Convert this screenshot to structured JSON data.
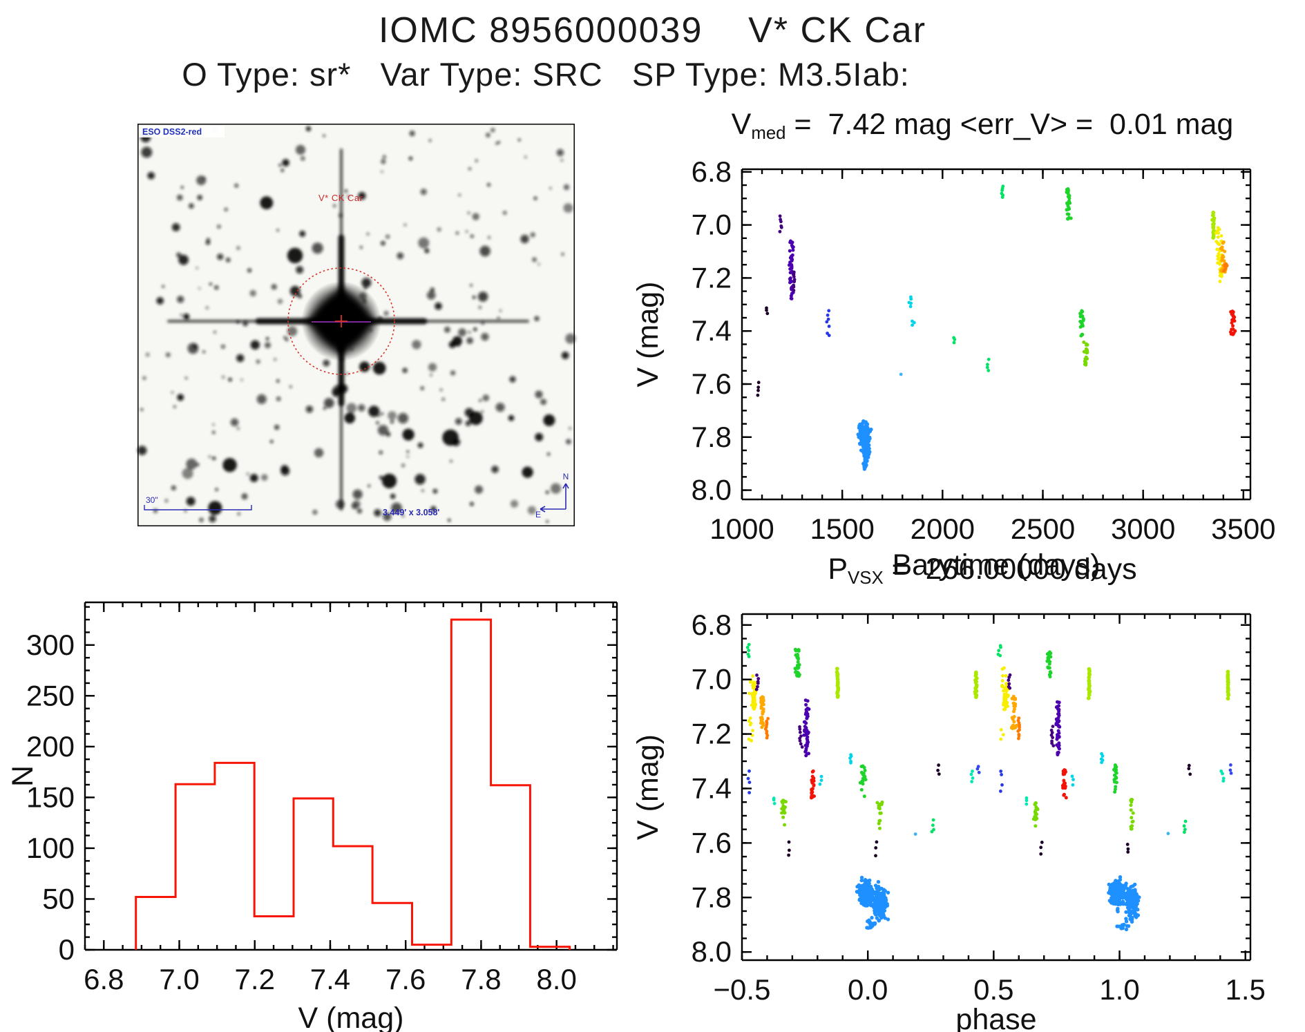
{
  "page": {
    "title": "IOMC 8956000039    V* CK Car",
    "subtitle": "O Type: sr*   Var Type: SRC   SP Type: M3.5Iab:"
  },
  "colors": {
    "axis": "#000000",
    "histred": "#f81505",
    "nearblack": "#1b0125",
    "darkviolet": "#43007f",
    "indigo": "#4b00b0",
    "blue": "#2737e8",
    "blue2": "#3349f0",
    "dodger": "#1e90ff",
    "skyblue": "#3fb3f7",
    "cyan": "#00d4e8",
    "turquoise": "#00e8b0",
    "springgreen": "#00e263",
    "green": "#1ed42a",
    "lime": "#78d900",
    "chartreuse": "#abe800",
    "yellow": "#f8ef00",
    "orange": "#ffa800",
    "orange2": "#ff7a00",
    "red": "#f31307",
    "finder_blue": "#2a2ab5",
    "finder_red": "#d93025",
    "finder_magenta": "#a735c9"
  },
  "finder": {
    "survey_label": "ESO DSS2-red",
    "target_label": "V* CK Car",
    "scale_label": "30\"",
    "fov_label": "3.449' x 3.058'",
    "compass_n": "N",
    "compass_e": "E"
  },
  "chart_data": [
    {
      "id": "lightcurve",
      "type": "scatter",
      "title_pre": "V",
      "title_sub": "med",
      "title_post": " =  7.42 mag <err_V> =  0.01 mag",
      "xlabel": "Barytime (days)",
      "ylabel": "V (mag)",
      "xlim": [
        1000,
        3535
      ],
      "ylim": [
        6.79,
        8.035
      ],
      "xtick_vals": [
        1000,
        1500,
        2000,
        2500,
        3000,
        3500
      ],
      "xtick_labels": [
        "1000",
        "1500",
        "2000",
        "2500",
        "3000",
        "3500"
      ],
      "ytick_vals": [
        6.8,
        7.0,
        7.2,
        7.4,
        7.6,
        7.8,
        8.0
      ],
      "ytick_labels": [
        "6.8",
        "7.0",
        "7.2",
        "7.4",
        "7.6",
        "7.8",
        "8.0"
      ],
      "xminor": 100,
      "yminor": 0.05,
      "clusters": [
        [
          1080,
          7.59,
          7.65,
          4,
          "nearblack",
          "dots"
        ],
        [
          1125,
          7.31,
          7.34,
          3,
          "nearblack",
          "dots"
        ],
        [
          1195,
          6.96,
          7.03,
          6,
          "darkviolet",
          "dots"
        ],
        [
          1247,
          7.05,
          7.28,
          45,
          "indigo",
          "col"
        ],
        [
          1256,
          7.17,
          7.25,
          8,
          "darkviolet",
          "dots"
        ],
        [
          1430,
          7.31,
          7.43,
          7,
          "blue",
          "dots"
        ],
        [
          1795,
          7.56,
          7.57,
          1,
          "skyblue",
          "dots"
        ],
        [
          1840,
          7.27,
          7.31,
          5,
          "cyan",
          "dots"
        ],
        [
          1852,
          7.36,
          7.38,
          3,
          "cyan",
          "dots"
        ],
        [
          2058,
          7.42,
          7.45,
          3,
          "springgreen",
          "dots"
        ],
        [
          2227,
          7.5,
          7.56,
          4,
          "springgreen",
          "dots"
        ],
        [
          2299,
          6.85,
          6.9,
          6,
          "springgreen",
          "dots"
        ],
        [
          2625,
          6.86,
          6.98,
          28,
          "green",
          "col"
        ],
        [
          2694,
          7.3,
          7.42,
          20,
          "green",
          "col"
        ],
        [
          2716,
          7.43,
          7.53,
          18,
          "lime",
          "col"
        ],
        [
          3350,
          6.95,
          7.05,
          15,
          "chartreuse",
          "bar"
        ],
        [
          3378,
          6.99,
          7.22,
          35,
          "yellow",
          "scatter"
        ],
        [
          3400,
          7.06,
          7.18,
          25,
          "orange",
          "col"
        ],
        [
          3412,
          7.14,
          7.18,
          8,
          "orange2",
          "col"
        ],
        [
          3447,
          7.32,
          7.42,
          22,
          "red",
          "col"
        ]
      ],
      "blob": {
        "color": "dodger",
        "lobes": [
          [
            1610,
            22,
            7.79,
            0.045,
            170
          ],
          [
            1617,
            15,
            7.84,
            0.04,
            120
          ],
          [
            1612,
            8,
            7.905,
            0.015,
            12
          ]
        ]
      }
    },
    {
      "id": "histogram",
      "type": "bar",
      "xlabel": "V (mag)",
      "ylabel": "N",
      "xlim": [
        6.75,
        8.16
      ],
      "ylim": [
        0,
        342
      ],
      "xtick_vals": [
        6.8,
        7.0,
        7.2,
        7.4,
        7.6,
        7.8,
        8.0
      ],
      "xtick_labels": [
        "6.8",
        "7.0",
        "7.2",
        "7.4",
        "7.6",
        "7.8",
        "8.0"
      ],
      "ytick_vals": [
        0,
        50,
        100,
        150,
        200,
        250,
        300
      ],
      "ytick_labels": [
        "0",
        "50",
        "100",
        "150",
        "200",
        "250",
        "300"
      ],
      "xminor": 0.05,
      "yminor": 12.5,
      "bin_edges": [
        6.885,
        6.99,
        7.094,
        7.199,
        7.303,
        7.408,
        7.512,
        7.617,
        7.721,
        7.826,
        7.93,
        8.035
      ],
      "values": [
        52,
        163,
        184,
        33,
        149,
        102,
        46,
        5,
        325,
        162,
        3
      ],
      "color_key": "histred"
    },
    {
      "id": "phase",
      "type": "scatter",
      "title_pre": "P",
      "title_sub": "VSX",
      "title_post": " =  266.00000 days",
      "xlabel": "phase",
      "ylabel": "V (mag)",
      "xlim": [
        -0.5,
        1.52
      ],
      "ylim": [
        6.76,
        8.03
      ],
      "xtick_vals": [
        -0.5,
        0.0,
        0.5,
        1.0,
        1.5
      ],
      "xtick_labels": [
        "−0.5",
        "0.0",
        "0.5",
        "1.0",
        "1.5"
      ],
      "ytick_vals": [
        6.8,
        7.0,
        7.2,
        7.4,
        7.6,
        7.8,
        8.0
      ],
      "ytick_labels": [
        "6.8",
        "7.0",
        "7.2",
        "7.4",
        "7.6",
        "7.8",
        "8.0"
      ],
      "xminor": 0.1,
      "yminor": 0.05,
      "mirror_offsets": [
        0,
        1
      ],
      "clusters": [
        [
          -0.475,
          6.87,
          6.92,
          5,
          "springgreen",
          "dots"
        ],
        [
          -0.465,
          6.95,
          7.23,
          13,
          "yellow",
          "scatter"
        ],
        [
          -0.452,
          7.01,
          7.11,
          55,
          "yellow",
          "col"
        ],
        [
          -0.437,
          6.98,
          7.04,
          6,
          "darkviolet",
          "dots"
        ],
        [
          -0.42,
          7.06,
          7.18,
          28,
          "orange",
          "col"
        ],
        [
          -0.4,
          7.14,
          7.22,
          10,
          "orange2",
          "dots"
        ],
        [
          -0.47,
          7.32,
          7.42,
          4,
          "blue",
          "dots"
        ],
        [
          -0.37,
          7.43,
          7.46,
          3,
          "turquoise",
          "dots"
        ],
        [
          -0.333,
          7.44,
          7.54,
          18,
          "lime",
          "col"
        ],
        [
          -0.31,
          7.59,
          7.65,
          3,
          "nearblack",
          "dots"
        ],
        [
          -0.28,
          6.89,
          6.99,
          26,
          "green",
          "col"
        ],
        [
          -0.268,
          7.17,
          7.25,
          8,
          "darkviolet",
          "dots"
        ],
        [
          -0.243,
          7.07,
          7.28,
          42,
          "indigo",
          "col"
        ],
        [
          -0.22,
          7.33,
          7.44,
          22,
          "red",
          "col"
        ],
        [
          -0.188,
          7.35,
          7.39,
          3,
          "cyan",
          "dots"
        ],
        [
          -0.121,
          6.96,
          7.07,
          15,
          "chartreuse",
          "bar"
        ],
        [
          -0.068,
          7.27,
          7.31,
          5,
          "cyan",
          "dots"
        ],
        [
          -0.018,
          7.31,
          7.43,
          18,
          "green",
          "col"
        ],
        [
          0.033,
          7.59,
          7.65,
          3,
          "nearblack",
          "dots"
        ],
        [
          0.047,
          7.44,
          7.55,
          14,
          "lime",
          "col"
        ],
        [
          0.19,
          7.56,
          7.57,
          1,
          "skyblue",
          "dots"
        ],
        [
          0.26,
          7.51,
          7.57,
          4,
          "springgreen",
          "dots"
        ],
        [
          0.28,
          7.31,
          7.35,
          3,
          "nearblack",
          "dots"
        ],
        [
          0.41,
          7.33,
          7.38,
          4,
          "turquoise",
          "dots"
        ],
        [
          0.43,
          6.97,
          7.07,
          15,
          "chartreuse",
          "bar"
        ],
        [
          0.44,
          7.31,
          7.35,
          3,
          "blue2",
          "dots"
        ]
      ],
      "blob": {
        "color": "dodger",
        "lobes": [
          [
            -0.005,
            0.03,
            7.785,
            0.045,
            170
          ],
          [
            0.05,
            0.024,
            7.82,
            0.05,
            150
          ],
          [
            0.012,
            0.02,
            7.9,
            0.02,
            15
          ]
        ]
      }
    }
  ]
}
